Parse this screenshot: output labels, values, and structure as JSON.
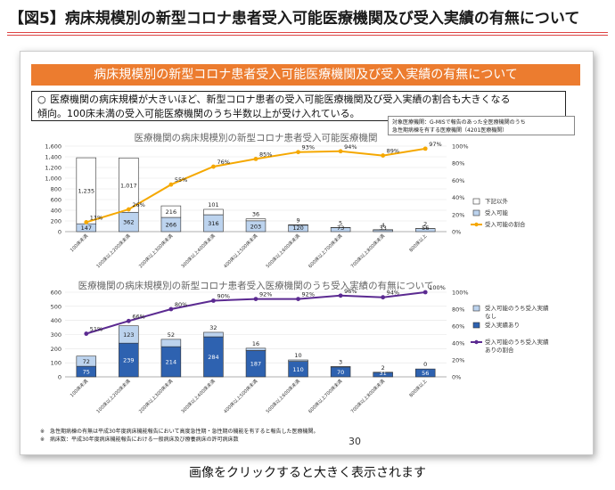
{
  "page_title": "【図5】病床規模別の新型コロナ患者受入可能医療機関及び受入実績の有無について",
  "banner": "病床規模別の新型コロナ患者受入可能医療機関及び受入実績の有無について",
  "note": {
    "bullet": "○",
    "line1": "医療機関の病床規模が大きいほど、新型コロナ患者の受入可能医療機関及び受入実績の割合も大きくなる",
    "line2": "傾向。100床未満の受入可能医療機関のうち半数以上が受け入れている。"
  },
  "ref_box": {
    "line1": "対象医療機関：G-MISで報告のあった全医療機関のうち",
    "line2": "急性期病棟を有する医療機関（4201医療機関）"
  },
  "footnotes": [
    "※　急性期病棟の有無は平成30年度病床機能報告において高度急性期・急性期の機能を有すると報告した医療機関。",
    "※　病床数：平成30年度病床機能報告における一般病床及び療養病床の許可病床数"
  ],
  "page_number": "30",
  "caption": "画像をクリックすると大きく表示されます",
  "colors": {
    "accent": "#ec7c2f",
    "bar_light": "#bcd3ee",
    "bar_dark": "#2e62b0",
    "line_orange": "#f5a800",
    "line_purple": "#5b2a91"
  },
  "chart_data": [
    {
      "type": "bar",
      "title": "医療機関の病床規模別の新型コロナ患者受入可能医療機関",
      "categories": [
        "100床未満",
        "100床以上200床未満",
        "200床以上300床未満",
        "300床以上400床未満",
        "400床以上500床未満",
        "500床以上600床未満",
        "600床以上700床未満",
        "700床以上800床未満",
        "800床以上"
      ],
      "series": [
        {
          "name": "受入可能",
          "values": [
            147,
            362,
            266,
            316,
            203,
            120,
            73,
            33,
            56
          ]
        },
        {
          "name": "下記以外",
          "values": [
            1235,
            1017,
            216,
            101,
            36,
            9,
            5,
            4,
            2
          ]
        }
      ],
      "line_series": {
        "name": "受入可能の割合",
        "values": [
          11,
          26,
          55,
          76,
          85,
          93,
          94,
          89,
          97
        ]
      },
      "ylim": [
        0,
        1600
      ],
      "yticks": [
        0,
        200,
        400,
        600,
        800,
        1000,
        1200,
        1400,
        1600
      ],
      "yticks_label": [
        "0",
        "200",
        "400",
        "600",
        "800",
        "1,000",
        "1,200",
        "1,400",
        "1,600"
      ],
      "y2lim": [
        0,
        100
      ],
      "y2ticks": [
        "0%",
        "20%",
        "40%",
        "60%",
        "80%",
        "100%"
      ],
      "labels_light": [
        "147",
        "362",
        "266",
        "316",
        "203",
        "120",
        "73",
        "33",
        "56"
      ],
      "labels_top": [
        "1,235",
        "1,017",
        "216",
        "101",
        "36",
        "9",
        "5",
        "4",
        "2"
      ],
      "labels_pct": [
        "11%",
        "26%",
        "55%",
        "76%",
        "85%",
        "93%",
        "94%",
        "89%",
        "97%"
      ],
      "legend": [
        {
          "name": "下記以外"
        },
        {
          "name": "受入可能"
        },
        {
          "name": "受入可能の割合"
        }
      ]
    },
    {
      "type": "bar",
      "title": "医療機関の病床規模別の新型コロナ患者受入医療機関のうち受入実績の有無について",
      "categories": [
        "100床未満",
        "100床以上200床未満",
        "200床以上300床未満",
        "300床以上400床未満",
        "400床以上500床未満",
        "500床以上600床未満",
        "600床以上700床未満",
        "700床以上800床未満",
        "800床以上"
      ],
      "series": [
        {
          "name": "受入実績あり",
          "values": [
            75,
            239,
            214,
            284,
            187,
            110,
            70,
            31,
            56
          ]
        },
        {
          "name": "受入可能のうち受入実績なし",
          "values": [
            72,
            123,
            52,
            32,
            16,
            10,
            3,
            2,
            0
          ]
        }
      ],
      "line_series": {
        "name": "受入可能のうち受入実績ありの割合",
        "values": [
          51,
          66,
          80,
          90,
          92,
          92,
          96,
          94,
          100
        ]
      },
      "ylim": [
        0,
        600
      ],
      "yticks": [
        0,
        100,
        200,
        300,
        400,
        500,
        600
      ],
      "yticks_label": [
        "0",
        "100",
        "200",
        "300",
        "400",
        "500",
        "600"
      ],
      "y2lim": [
        0,
        100
      ],
      "y2ticks": [
        "0%",
        "20%",
        "40%",
        "60%",
        "80%",
        "100%"
      ],
      "labels_dark": [
        "75",
        "239",
        "214",
        "284",
        "187",
        "110",
        "70",
        "31",
        "56"
      ],
      "labels_top": [
        "72",
        "123",
        "52",
        "32",
        "16",
        "10",
        "3",
        "2",
        "0"
      ],
      "labels_pct": [
        "51%",
        "66%",
        "80%",
        "90%",
        "92%",
        "92%",
        "96%",
        "94%",
        "100%"
      ],
      "legend": [
        {
          "name": "受入可能のうち受入実績",
          "name2": "なし"
        },
        {
          "name": "受入実績あり"
        },
        {
          "name": "受入可能のうち受入実績",
          "name2": "ありの割合"
        }
      ]
    }
  ]
}
